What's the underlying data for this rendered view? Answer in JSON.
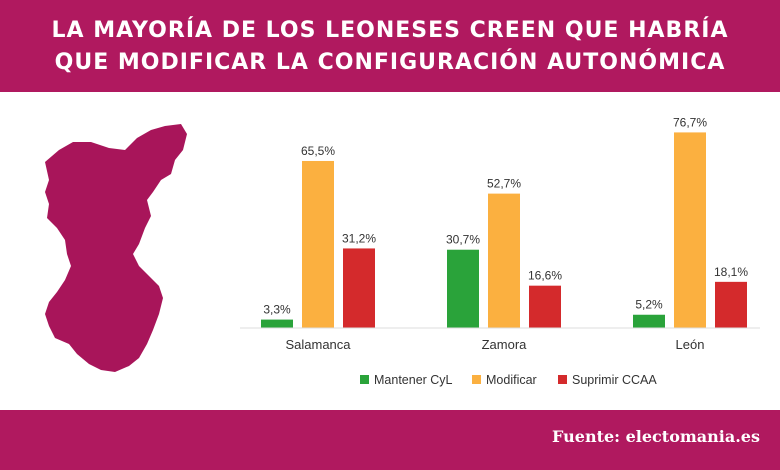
{
  "header": {
    "title_line1": "LA MAYORÍA DE LOS LEONESES CREEN QUE HABRÍA",
    "title_line2": "QUE MODIFICAR LA CONFIGURACIÓN AUTONÓMICA"
  },
  "footer": {
    "source": "Fuente: electomania.es"
  },
  "colors": {
    "brand": "#b0195f",
    "map_fill": "#a8155a",
    "series": [
      "#2aa33a",
      "#fbb040",
      "#d42a2c"
    ]
  },
  "chart_data": {
    "type": "bar",
    "title": "LA MAYORÍA DE LOS LEONESES CREEN QUE HABRÍA QUE MODIFICAR LA CONFIGURACIÓN AUTONÓMICA",
    "categories": [
      "Salamanca",
      "Zamora",
      "León"
    ],
    "series": [
      {
        "name": "Mantener CyL",
        "values": [
          3.3,
          30.7,
          5.2
        ],
        "labels": [
          "3,3%",
          "30,7%",
          "5,2%"
        ]
      },
      {
        "name": "Modificar",
        "values": [
          65.5,
          52.7,
          76.7
        ],
        "labels": [
          "65,5%",
          "52,7%",
          "76,7%"
        ]
      },
      {
        "name": "Suprimir CCAA",
        "values": [
          31.2,
          16.6,
          18.1
        ],
        "labels": [
          "31,2%",
          "16,6%",
          "18,1%"
        ]
      }
    ],
    "ylim": [
      0,
      80
    ],
    "grid": false,
    "legend_position": "bottom",
    "xlabel": "",
    "ylabel": ""
  }
}
